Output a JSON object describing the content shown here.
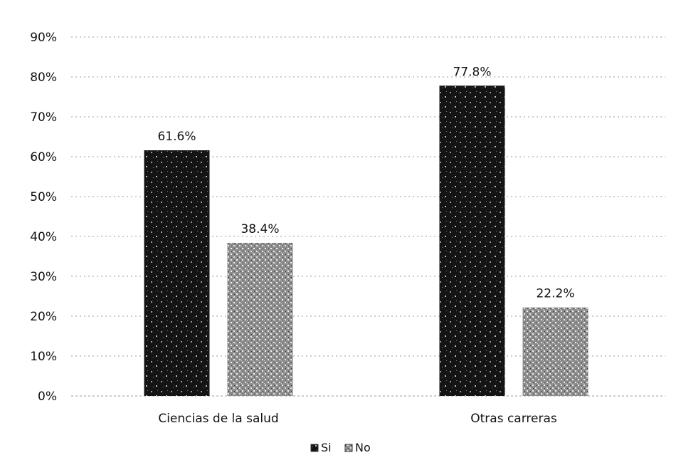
{
  "chart_data": {
    "type": "bar",
    "categories": [
      "Ciencias de la salud",
      "Otras carreras"
    ],
    "series": [
      {
        "name": "Si",
        "values": [
          61.6,
          77.8
        ],
        "color": "#141414"
      },
      {
        "name": "No",
        "values": [
          38.4,
          22.2
        ],
        "color": "#8a8a8a"
      }
    ],
    "data_labels": [
      [
        "61.6%",
        "77.8%"
      ],
      [
        "38.4%",
        "22.2%"
      ]
    ],
    "ylim": [
      0,
      90
    ],
    "yticks": [
      "0%",
      "10%",
      "20%",
      "30%",
      "40%",
      "50%",
      "60%",
      "70%",
      "80%",
      "90%"
    ],
    "ytick_values": [
      0,
      10,
      20,
      30,
      40,
      50,
      60,
      70,
      80,
      90
    ],
    "grid": true,
    "legend_position": "bottom-center",
    "title": "",
    "xlabel": "",
    "ylabel": ""
  }
}
